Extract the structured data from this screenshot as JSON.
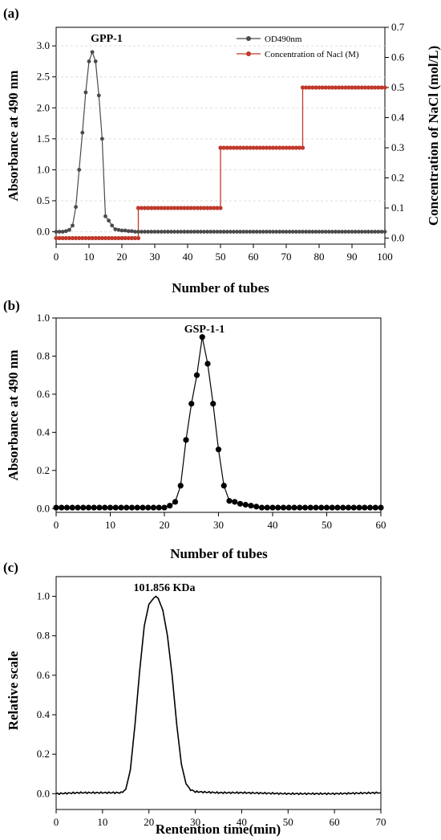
{
  "chart_data": [
    {
      "panel": "(a)",
      "type": "line",
      "annotation": "GPP-1",
      "xlabel": "Number of tubes",
      "ylabel": "Absorbance at 490 nm",
      "ylabel_right": "Concentration of  NaCl (mol/L)",
      "xlim": [
        0,
        100
      ],
      "ylim": [
        -0.2,
        3.3
      ],
      "ylim_right": [
        -0.02,
        0.7
      ],
      "xticks": [
        "0",
        "10",
        "20",
        "30",
        "40",
        "50",
        "60",
        "70",
        "80",
        "90",
        "100"
      ],
      "yticks": [
        "0.0",
        "0.5",
        "1.0",
        "1.5",
        "2.0",
        "2.5",
        "3.0"
      ],
      "yticks_right": [
        "0.0",
        "0.1",
        "0.2",
        "0.3",
        "0.4",
        "0.5",
        "0.6",
        "0.7"
      ],
      "legend_position": "top-right",
      "series": [
        {
          "name": "OD490nm",
          "axis": "left",
          "color": "#4a4a4a",
          "x": [
            0,
            1,
            2,
            3,
            4,
            5,
            6,
            7,
            8,
            9,
            10,
            11,
            12,
            13,
            14,
            15,
            16,
            17,
            18,
            19,
            20,
            21,
            22,
            23,
            24,
            25
          ],
          "y": [
            0.0,
            0.0,
            0.0,
            0.01,
            0.03,
            0.1,
            0.4,
            1.0,
            1.6,
            2.25,
            2.75,
            2.9,
            2.75,
            2.2,
            1.5,
            0.25,
            0.18,
            0.1,
            0.04,
            0.03,
            0.02,
            0.02,
            0.01,
            0.01,
            0.0,
            0.0
          ],
          "tail_from": 25,
          "tail_to": 100,
          "tail_value": 0.0
        },
        {
          "name": "Concentration of Nacl (M)",
          "axis": "right",
          "color": "#c0392b",
          "steps": [
            {
              "from": 0,
              "to": 25,
              "value": 0.0
            },
            {
              "from": 25,
              "to": 50,
              "value": 0.1
            },
            {
              "from": 50,
              "to": 75,
              "value": 0.3
            },
            {
              "from": 75,
              "to": 100,
              "value": 0.5
            }
          ]
        }
      ]
    },
    {
      "panel": "(b)",
      "type": "scatter",
      "annotation": "GSP-1-1",
      "xlabel": "Number of tubes",
      "ylabel": "Absorbance at 490 nm",
      "xlim": [
        0,
        60
      ],
      "ylim": [
        -0.02,
        1.0
      ],
      "xticks": [
        "0",
        "10",
        "20",
        "30",
        "40",
        "50",
        "60"
      ],
      "yticks": [
        "0.0",
        "0.2",
        "0.4",
        "0.6",
        "0.8",
        "1.0"
      ],
      "series": [
        {
          "color": "#000000",
          "x": [
            0,
            1,
            2,
            3,
            4,
            5,
            6,
            7,
            8,
            9,
            10,
            11,
            12,
            13,
            14,
            15,
            16,
            17,
            18,
            19,
            20,
            21,
            22,
            23,
            24,
            25,
            26,
            27,
            28,
            29,
            30,
            31,
            32,
            33,
            34,
            35,
            36,
            37,
            38,
            39,
            40,
            41,
            42,
            43,
            44,
            45,
            46,
            47,
            48,
            49,
            50,
            51,
            52,
            53,
            54,
            55,
            56,
            57,
            58,
            59,
            60
          ],
          "y": [
            0.005,
            0.005,
            0.005,
            0.005,
            0.005,
            0.005,
            0.005,
            0.005,
            0.005,
            0.005,
            0.005,
            0.005,
            0.005,
            0.005,
            0.005,
            0.005,
            0.005,
            0.005,
            0.005,
            0.005,
            0.005,
            0.015,
            0.035,
            0.12,
            0.36,
            0.55,
            0.7,
            0.9,
            0.76,
            0.55,
            0.31,
            0.12,
            0.04,
            0.035,
            0.025,
            0.02,
            0.015,
            0.01,
            0.005,
            0.005,
            0.005,
            0.005,
            0.005,
            0.005,
            0.005,
            0.005,
            0.005,
            0.005,
            0.005,
            0.005,
            0.005,
            0.005,
            0.005,
            0.005,
            0.005,
            0.005,
            0.005,
            0.005,
            0.005,
            0.005,
            0.005
          ]
        }
      ]
    },
    {
      "panel": "(c)",
      "type": "line",
      "annotation": "101.856 KDa",
      "xlabel": "Rentention time(min)",
      "ylabel": "Relative scale",
      "xlim": [
        0,
        70
      ],
      "ylim": [
        -0.08,
        1.1
      ],
      "xticks": [
        "0",
        "10",
        "20",
        "30",
        "40",
        "50",
        "60",
        "70"
      ],
      "yticks": [
        "0.0",
        "0.2",
        "0.4",
        "0.6",
        "0.8",
        "1.0"
      ],
      "series": [
        {
          "color": "#000000",
          "x": [
            0,
            5,
            10,
            14,
            15,
            16,
            17,
            18,
            19,
            20,
            21,
            21.5,
            22,
            23,
            24,
            25,
            26,
            27,
            28,
            29,
            30,
            35,
            40,
            50,
            60,
            70
          ],
          "y": [
            0.0,
            0.005,
            0.005,
            0.005,
            0.02,
            0.12,
            0.35,
            0.62,
            0.85,
            0.96,
            0.99,
            1.0,
            0.99,
            0.93,
            0.8,
            0.6,
            0.35,
            0.15,
            0.05,
            0.02,
            0.01,
            0.005,
            0.005,
            0.0,
            0.0,
            0.005
          ]
        }
      ]
    }
  ]
}
